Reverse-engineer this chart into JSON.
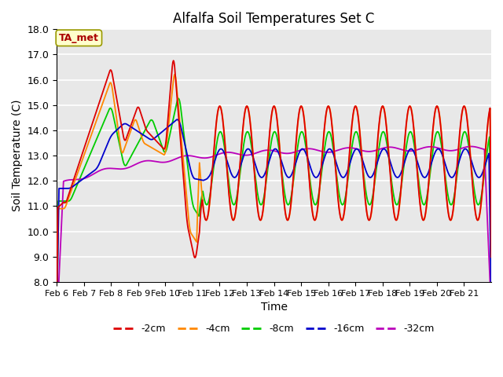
{
  "title": "Alfalfa Soil Temperatures Set C",
  "xlabel": "Time",
  "ylabel": "Soil Temperature (C)",
  "ylim": [
    8.0,
    18.0
  ],
  "yticks": [
    8.0,
    9.0,
    10.0,
    11.0,
    12.0,
    13.0,
    14.0,
    15.0,
    16.0,
    17.0,
    18.0
  ],
  "x_labels": [
    "Feb 6",
    "Feb 7",
    "Feb 8",
    "Feb 9",
    "Feb 10",
    "Feb 11",
    "Feb 12",
    "Feb 13",
    "Feb 14",
    "Feb 15",
    "Feb 16",
    "Feb 17",
    "Feb 18",
    "Feb 19",
    "Feb 20",
    "Feb 21"
  ],
  "colors": {
    "-2cm": "#dd0000",
    "-4cm": "#ff8800",
    "-8cm": "#00cc00",
    "-16cm": "#0000cc",
    "-32cm": "#bb00bb"
  },
  "legend_label": "TA_met",
  "background_color": "#e8e8e8",
  "grid_color": "#ffffff",
  "annotation_box_color": "#ffffcc",
  "annotation_text_color": "#aa0000",
  "annotation_edge_color": "#999900"
}
